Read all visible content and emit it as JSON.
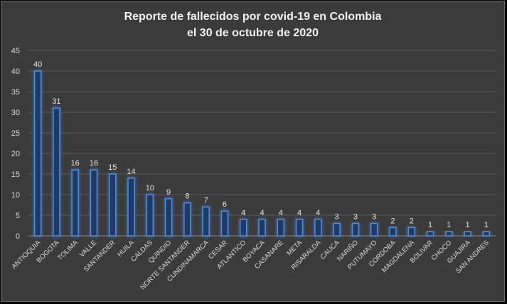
{
  "chart_data": {
    "type": "bar",
    "title_line1": "Reporte de fallecidos por covid-19 en Colombia",
    "title_line2": "el 30 de octubre de 2020",
    "xlabel": "",
    "ylabel": "",
    "ylim": [
      0,
      45
    ],
    "yticks": [
      0,
      5,
      10,
      15,
      20,
      25,
      30,
      35,
      40,
      45
    ],
    "grid": true,
    "legend": "none",
    "bar_color": "#1f3a66",
    "bar_edge_color": "#4f8fe0",
    "categories": [
      "ANTIOQUIA",
      "BOGOTA",
      "TOLIMA",
      "VALLE",
      "SANTANDER",
      "HUILA",
      "CALDAS",
      "QUINDIO",
      "NORTE SANTANDER",
      "CUNDINAMARCA",
      "CESAR",
      "ATLANTICO",
      "BOYACA",
      "CASANARE",
      "META",
      "RISARALDA",
      "CAUCA",
      "NARIÑO",
      "PUTUMAYO",
      "CORDOBA",
      "MAGDALENA",
      "BOLIVAR",
      "CHOCO",
      "GUAJIRA",
      "SAN ANDRES"
    ],
    "values": [
      40,
      31,
      16,
      16,
      15,
      14,
      10,
      9,
      8,
      7,
      6,
      4,
      4,
      4,
      4,
      4,
      3,
      3,
      3,
      2,
      2,
      1,
      1,
      1,
      1
    ]
  }
}
